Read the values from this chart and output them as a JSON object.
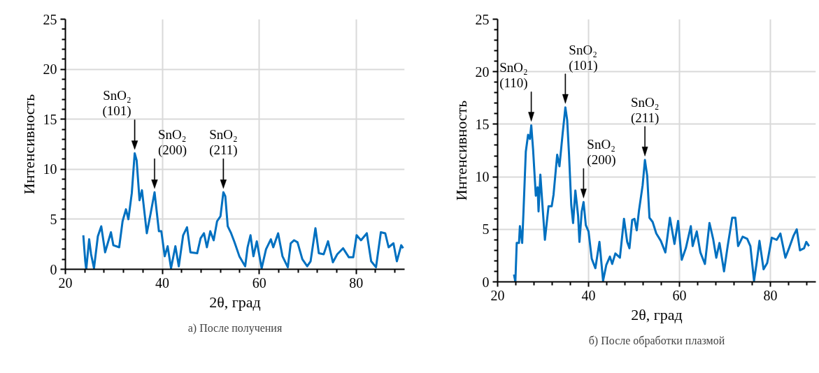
{
  "chart_data": [
    {
      "type": "line",
      "title": "а) После получения",
      "xlabel": "2θ, град",
      "ylabel": "Интенсивность",
      "color": "#0070c0",
      "grid": true,
      "x": [
        23.7,
        24.1,
        24.3,
        24.9,
        25.3,
        25.9,
        26.7,
        27.4,
        28.2,
        29.4,
        29.9,
        31.1,
        31.8,
        32.5,
        33.0,
        33.7,
        34.3,
        34.7,
        35.3,
        35.8,
        36.8,
        37.6,
        38.4,
        39.3,
        39.8,
        40.5,
        41.1,
        41.8,
        42.7,
        43.4,
        44.3,
        45.1,
        45.8,
        47.2,
        47.9,
        48.6,
        49.2,
        49.9,
        50.6,
        51.3,
        52.0,
        52.6,
        53.0,
        53.5,
        54.2,
        54.9,
        55.9,
        57.1,
        57.6,
        58.2,
        58.8,
        59.5,
        60.5,
        61.4,
        62.4,
        62.9,
        63.9,
        64.8,
        65.9,
        66.5,
        67.2,
        67.9,
        68.9,
        69.9,
        70.6,
        71.6,
        72.3,
        73.3,
        74.2,
        75.2,
        76.1,
        77.3,
        78.5,
        79.4,
        80.1,
        81.0,
        82.2,
        83.1,
        84.1,
        85.1,
        86.0,
        86.7,
        87.7,
        88.4,
        89.3,
        89.7
      ],
      "values": [
        3.4,
        0.8,
        0,
        3.0,
        1.5,
        0.1,
        3.3,
        4.3,
        1.7,
        3.7,
        2.4,
        2.2,
        4.8,
        6.0,
        5.0,
        7.6,
        11.6,
        10.9,
        6.9,
        7.9,
        3.6,
        5.6,
        7.7,
        3.8,
        3.8,
        1.3,
        2.3,
        0.1,
        2.3,
        0.3,
        3.4,
        4.2,
        1.7,
        1.6,
        3.1,
        3.6,
        2.2,
        3.8,
        2.9,
        4.8,
        5.3,
        7.7,
        7.3,
        4.3,
        3.6,
        2.7,
        1.3,
        0.3,
        2.2,
        3.4,
        1.3,
        2.8,
        0.1,
        2.0,
        3.0,
        2.2,
        3.6,
        1.3,
        0.2,
        2.6,
        2.9,
        2.7,
        1.0,
        0.3,
        0.8,
        4.1,
        1.6,
        1.5,
        2.8,
        0.7,
        1.5,
        2.1,
        1.2,
        1.2,
        3.4,
        2.9,
        3.6,
        0.8,
        0.2,
        3.7,
        3.6,
        2.2,
        2.6,
        0.8,
        2.4,
        2.1
      ],
      "xlim": [
        20,
        90
      ],
      "ylim": [
        0,
        25
      ],
      "xticks": [
        20,
        {
          "value": 24,
          "label": null
        },
        {
          "value": 28,
          "label": null
        },
        {
          "value": 32,
          "label": null
        },
        {
          "value": 36,
          "label": null
        },
        40,
        {
          "value": 44,
          "label": null
        },
        {
          "value": 48,
          "label": null
        },
        {
          "value": 52,
          "label": null
        },
        {
          "value": 56,
          "label": null
        },
        60,
        {
          "value": 64,
          "label": null
        },
        {
          "value": 68,
          "label": null
        },
        {
          "value": 72,
          "label": null
        },
        {
          "value": 76,
          "label": null
        },
        80,
        {
          "value": 84,
          "label": null
        },
        {
          "value": 88,
          "label": null
        }
      ],
      "yticks": [
        0,
        {
          "value": 1,
          "label": null
        },
        {
          "value": 2,
          "label": null
        },
        {
          "value": 3,
          "label": null
        },
        {
          "value": 4,
          "label": null
        },
        5,
        {
          "value": 6,
          "label": null
        },
        {
          "value": 7,
          "label": null
        },
        {
          "value": 8,
          "label": null
        },
        {
          "value": 9,
          "label": null
        },
        10,
        {
          "value": 11,
          "label": null
        },
        {
          "value": 12,
          "label": null
        },
        {
          "value": 13,
          "label": null
        },
        {
          "value": 14,
          "label": null
        },
        15,
        {
          "value": 16,
          "label": null
        },
        {
          "value": 17,
          "label": null
        },
        {
          "value": 18,
          "label": null
        },
        {
          "value": 19,
          "label": null
        },
        20,
        {
          "value": 21,
          "label": null
        },
        {
          "value": 22,
          "label": null
        },
        {
          "value": 23,
          "label": null
        },
        {
          "value": 24,
          "label": null
        },
        25
      ],
      "annotations": [
        {
          "text": "SnO₂\n(101)",
          "x": 34.3,
          "y": 11.6
        },
        {
          "text": "SnO₂\n(200)",
          "x": 38.4,
          "y": 7.7
        },
        {
          "text": "SnO₂\n(211)",
          "x": 52.6,
          "y": 7.7
        }
      ]
    },
    {
      "type": "line",
      "title": "б) После обработки плазмой",
      "xlabel": "2θ, град",
      "ylabel": "Интенсивность",
      "color": "#0070c0",
      "grid": true,
      "x": [
        23.6,
        23.9,
        24.2,
        24.7,
        24.9,
        25.4,
        25.7,
        26.2,
        26.7,
        27.1,
        27.4,
        27.8,
        28.4,
        28.8,
        29.0,
        29.4,
        29.7,
        30.4,
        31.2,
        31.9,
        32.3,
        33.1,
        33.6,
        34.3,
        34.9,
        35.3,
        35.7,
        36.2,
        36.6,
        37.1,
        37.7,
        38.0,
        38.5,
        38.9,
        39.4,
        40.0,
        40.7,
        41.5,
        42.4,
        43.2,
        43.9,
        44.7,
        45.2,
        45.9,
        46.9,
        47.8,
        48.5,
        49.0,
        49.6,
        50.1,
        50.6,
        51.1,
        51.9,
        52.4,
        52.9,
        53.4,
        54.1,
        54.9,
        55.9,
        56.9,
        57.9,
        58.9,
        59.7,
        60.5,
        61.4,
        62.5,
        62.9,
        63.8,
        64.6,
        65.6,
        66.6,
        67.4,
        68.1,
        68.8,
        69.8,
        70.6,
        71.6,
        72.3,
        72.9,
        73.9,
        74.9,
        75.6,
        76.4,
        77.0,
        77.6,
        78.5,
        79.3,
        80.3,
        81.4,
        82.2,
        83.3,
        84.1,
        85.1,
        85.8,
        86.5,
        87.4,
        87.9,
        88.5
      ],
      "values": [
        0.7,
        0,
        3.7,
        3.7,
        5.3,
        3.7,
        6.8,
        12.4,
        14.0,
        13.6,
        14.9,
        12.6,
        8.2,
        9.0,
        6.7,
        10.2,
        8.3,
        4.0,
        7.2,
        7.2,
        8.3,
        12.1,
        11.0,
        14.1,
        16.6,
        15.4,
        12.2,
        7.3,
        5.6,
        8.7,
        6.3,
        3.8,
        6.7,
        7.6,
        5.4,
        4.8,
        2.2,
        1.3,
        3.8,
        0.1,
        1.6,
        2.4,
        1.7,
        2.7,
        2.3,
        6.0,
        3.8,
        3.2,
        5.9,
        6.0,
        4.9,
        6.8,
        9.2,
        11.6,
        10.1,
        6.1,
        5.7,
        4.6,
        3.9,
        2.8,
        6.1,
        3.6,
        5.8,
        2.1,
        3.2,
        5.3,
        3.4,
        4.8,
        2.8,
        1.7,
        5.6,
        4.1,
        2.3,
        3.7,
        1.0,
        3.4,
        6.1,
        6.1,
        3.4,
        4.3,
        4.1,
        3.4,
        0.1,
        1.9,
        3.9,
        1.2,
        1.8,
        4.2,
        4.0,
        4.6,
        2.3,
        3.2,
        4.4,
        5.0,
        3.0,
        3.2,
        3.8,
        3.4
      ],
      "xlim": [
        20,
        90
      ],
      "ylim": [
        0,
        25
      ],
      "xticks": [
        20,
        {
          "value": 24,
          "label": null
        },
        {
          "value": 28,
          "label": null
        },
        {
          "value": 32,
          "label": null
        },
        {
          "value": 36,
          "label": null
        },
        40,
        {
          "value": 44,
          "label": null
        },
        {
          "value": 48,
          "label": null
        },
        {
          "value": 52,
          "label": null
        },
        {
          "value": 56,
          "label": null
        },
        60,
        {
          "value": 64,
          "label": null
        },
        {
          "value": 68,
          "label": null
        },
        {
          "value": 72,
          "label": null
        },
        {
          "value": 76,
          "label": null
        },
        80,
        {
          "value": 84,
          "label": null
        },
        {
          "value": 88,
          "label": null
        }
      ],
      "yticks": [
        0,
        {
          "value": 1,
          "label": null
        },
        {
          "value": 2,
          "label": null
        },
        {
          "value": 3,
          "label": null
        },
        {
          "value": 4,
          "label": null
        },
        5,
        {
          "value": 6,
          "label": null
        },
        {
          "value": 7,
          "label": null
        },
        {
          "value": 8,
          "label": null
        },
        {
          "value": 9,
          "label": null
        },
        10,
        {
          "value": 11,
          "label": null
        },
        {
          "value": 12,
          "label": null
        },
        {
          "value": 13,
          "label": null
        },
        {
          "value": 14,
          "label": null
        },
        15,
        {
          "value": 16,
          "label": null
        },
        {
          "value": 17,
          "label": null
        },
        {
          "value": 18,
          "label": null
        },
        {
          "value": 19,
          "label": null
        },
        20,
        {
          "value": 21,
          "label": null
        },
        {
          "value": 22,
          "label": null
        },
        {
          "value": 23,
          "label": null
        },
        {
          "value": 24,
          "label": null
        },
        25
      ],
      "annotations": [
        {
          "text": "SnO₂\n(110)",
          "x": 27.4,
          "y": 14.9
        },
        {
          "text": "SnO₂\n(101)",
          "x": 34.9,
          "y": 16.6
        },
        {
          "text": "SnO₂\n(200)",
          "x": 38.9,
          "y": 7.6
        },
        {
          "text": "SnO₂\n(211)",
          "x": 52.4,
          "y": 11.6
        }
      ]
    }
  ]
}
